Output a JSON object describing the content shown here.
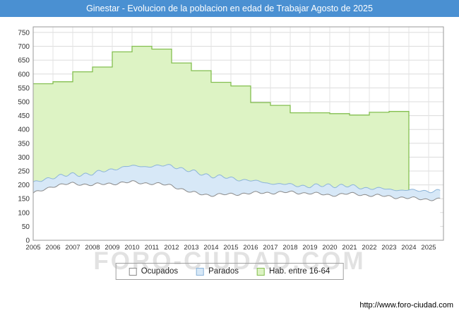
{
  "title_bar": {
    "text": "Ginestar - Evolucion de la poblacion en edad de Trabajar Agosto de 2025",
    "bg": "#4a90d2"
  },
  "watermark": "FORO-CIUDAD.COM",
  "footer": {
    "url": "http://www.foro-ciudad.com"
  },
  "legend": [
    {
      "label": "Ocupados",
      "fill": "#ffffff",
      "border": "#8a8a8a"
    },
    {
      "label": "Parados",
      "fill": "#d7e8f7",
      "border": "#8cb4d9"
    },
    {
      "label": "Hab. entre 16-64",
      "fill": "#ddf3c4",
      "border": "#84bf50"
    }
  ],
  "chart_data": {
    "type": "area",
    "title": "Ginestar - Evolucion de la poblacion en edad de Trabajar Agosto de 2025",
    "xlabel": "",
    "ylabel": "",
    "ylim": [
      0,
      750
    ],
    "y_ticks": [
      0,
      50,
      100,
      150,
      200,
      250,
      300,
      350,
      400,
      450,
      500,
      550,
      600,
      650,
      700,
      750
    ],
    "x_years": [
      2005,
      2006,
      2007,
      2008,
      2009,
      2010,
      2011,
      2012,
      2013,
      2014,
      2015,
      2016,
      2017,
      2018,
      2019,
      2020,
      2021,
      2022,
      2023,
      2024,
      2025
    ],
    "x_end_label": "Agosto 2025",
    "legend_position": "bottom",
    "grid": true,
    "stacking": "Parados se apila sobre Ocupados; Hab. entre 16-64 es area de fondo con escalones anuales",
    "series": [
      {
        "name": "Ocupados",
        "color_fill": "#ffffff",
        "color_line": "#8a8a8a",
        "values": [
          168,
          196,
          205,
          200,
          205,
          210,
          205,
          198,
          172,
          163,
          166,
          170,
          172,
          173,
          170,
          163,
          168,
          163,
          158,
          152,
          148
        ]
      },
      {
        "name": "Parados",
        "color_fill": "#d7e8f7",
        "color_line": "#8cb4d9",
        "values": [
          38,
          33,
          32,
          40,
          52,
          58,
          62,
          72,
          76,
          70,
          58,
          45,
          34,
          27,
          25,
          36,
          27,
          25,
          26,
          28,
          30
        ]
      },
      {
        "name": "Hab. entre 16-64",
        "color_fill": "#ddf3c4",
        "color_line": "#84bf50",
        "values": [
          565,
          572,
          608,
          625,
          680,
          700,
          690,
          640,
          612,
          570,
          557,
          497,
          487,
          460,
          460,
          457,
          452,
          462,
          465,
          null,
          null
        ]
      }
    ]
  }
}
